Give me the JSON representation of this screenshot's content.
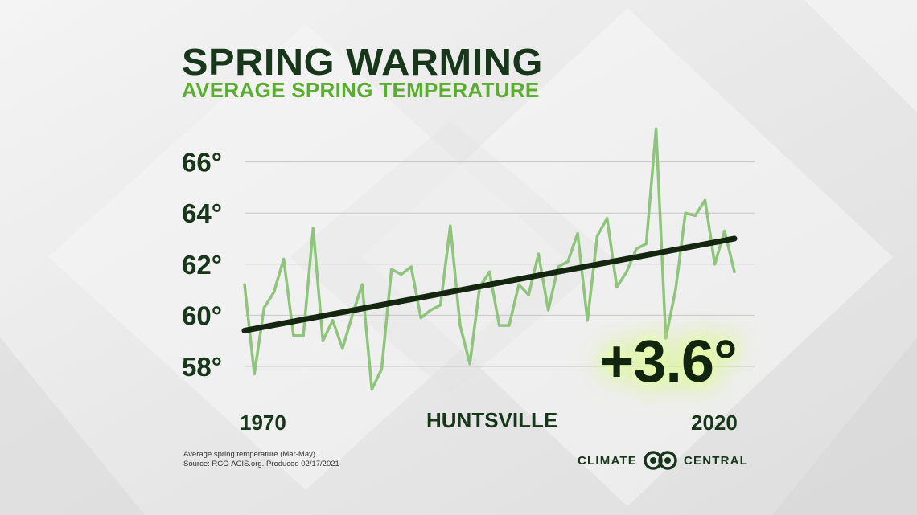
{
  "header": {
    "title": "SPRING WARMING",
    "subtitle": "AVERAGE SPRING TEMPERATURE"
  },
  "colors": {
    "title": "#17361a",
    "subtitle": "#5aad2f",
    "series_line": "#8ec47b",
    "trend_line": "#14260f",
    "grid": "#c6c6c6"
  },
  "highlight": {
    "change": "+3.6°"
  },
  "location": "HUNTSVILLE",
  "footnote": {
    "line1": "Average spring temperature (Mar-May).",
    "line2": "Source: RCC-ACIS.org. Produced 02/17/2021"
  },
  "brand": {
    "left": "CLIMATE",
    "right": "CENTRAL",
    "logo_icon": "climate-central-logo-icon"
  },
  "chart_data": {
    "type": "line",
    "title": "SPRING WARMING",
    "subtitle": "AVERAGE SPRING TEMPERATURE",
    "xlabel": "",
    "ylabel": "",
    "xlim": [
      1970,
      2020
    ],
    "ylim": [
      56,
      68
    ],
    "x_tick_labels": [
      "1970",
      "2020"
    ],
    "y_ticks": [
      58,
      60,
      62,
      64,
      66
    ],
    "y_tick_labels": [
      "58°",
      "60°",
      "62°",
      "64°",
      "66°"
    ],
    "grid": true,
    "x": [
      1970,
      1971,
      1972,
      1973,
      1974,
      1975,
      1976,
      1977,
      1978,
      1979,
      1980,
      1981,
      1982,
      1983,
      1984,
      1985,
      1986,
      1987,
      1988,
      1989,
      1990,
      1991,
      1992,
      1993,
      1994,
      1995,
      1996,
      1997,
      1998,
      1999,
      2000,
      2001,
      2002,
      2003,
      2004,
      2005,
      2006,
      2007,
      2008,
      2009,
      2010,
      2011,
      2012,
      2013,
      2014,
      2015,
      2016,
      2017,
      2018,
      2019,
      2020
    ],
    "series": [
      {
        "values": [
          61.2,
          57.7,
          60.3,
          60.9,
          62.2,
          59.2,
          59.2,
          63.4,
          59.0,
          59.8,
          58.7,
          60.0,
          61.2,
          57.1,
          57.9,
          61.8,
          61.6,
          61.9,
          59.9,
          60.2,
          60.4,
          63.5,
          59.6,
          58.1,
          61.1,
          61.7,
          59.6,
          59.6,
          61.2,
          60.8,
          62.4,
          60.2,
          61.9,
          62.1,
          63.2,
          59.8,
          63.1,
          63.8,
          61.1,
          61.7,
          62.6,
          62.8,
          67.3,
          59.1,
          61.0,
          64.0,
          63.9,
          64.5,
          62.0,
          63.3,
          61.7
        ]
      },
      {
        "name_type": "trend",
        "values": [
          59.4,
          63.0
        ],
        "x": [
          1970,
          2020
        ]
      }
    ],
    "annotations": [
      "+3.6°",
      "HUNTSVILLE"
    ]
  }
}
